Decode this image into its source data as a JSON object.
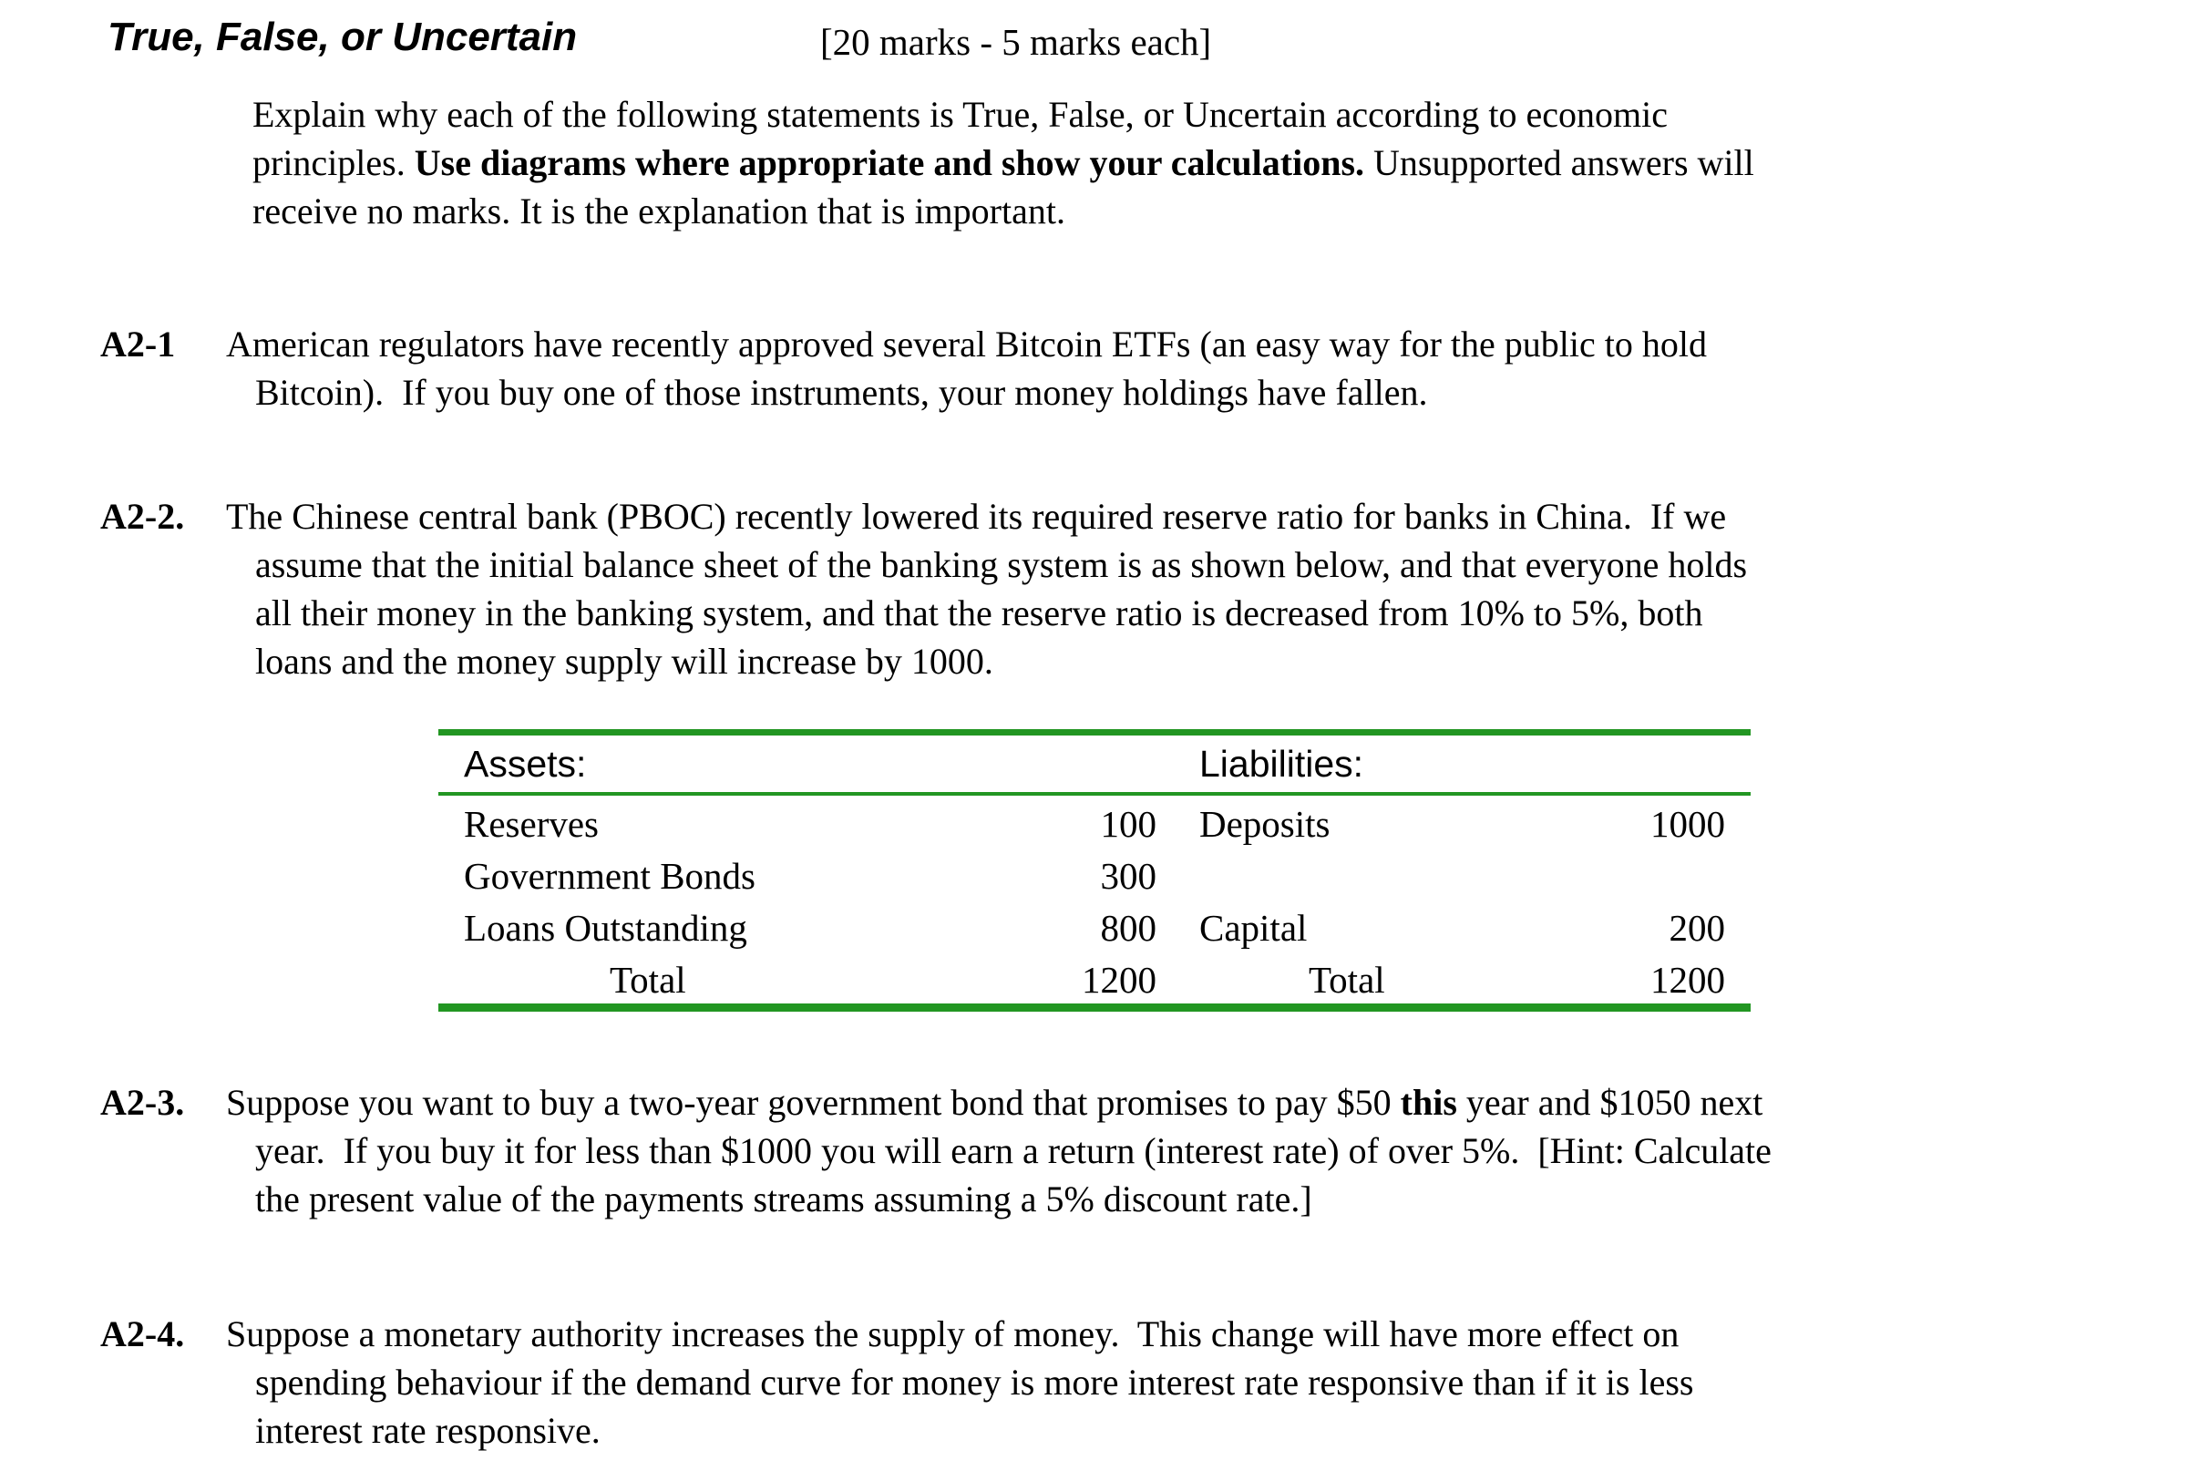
{
  "page": {
    "background": "#ffffff",
    "text_color": "#000000"
  },
  "header": {
    "title": "True, False, or Uncertain",
    "marks": "[20 marks - 5 marks each]"
  },
  "instructions": {
    "lines": [
      [
        {
          "t": "Explain why each of the following statements is True, False, or Uncertain according to economic"
        }
      ],
      [
        {
          "t": "principles. "
        },
        {
          "t": "Use diagrams where appropriate and show your calculations.",
          "b": true
        },
        {
          "t": " Unsupported answers will"
        }
      ],
      [
        {
          "t": "receive no marks. It is the explanation that is important."
        }
      ]
    ]
  },
  "questions": [
    {
      "label": "A2-1",
      "lines": [
        [
          {
            "t": "American regulators have recently approved several Bitcoin ETFs (an easy way for the public to hold"
          }
        ],
        [
          {
            "t": "Bitcoin).  If you buy one of those instruments, your money holdings have fallen."
          }
        ]
      ]
    },
    {
      "label": "A2-2.",
      "lines": [
        [
          {
            "t": "The Chinese central bank (PBOC) recently lowered its required reserve ratio for banks in China.  If we"
          }
        ],
        [
          {
            "t": "assume that the initial balance sheet of the banking system is as shown below, and that everyone holds"
          }
        ],
        [
          {
            "t": "all their money in the banking system, and that the reserve ratio is decreased from 10% to 5%, both"
          }
        ],
        [
          {
            "t": "loans and the money supply will increase by 1000."
          }
        ]
      ]
    },
    {
      "label": "A2-3.",
      "lines": [
        [
          {
            "t": "Suppose you want to buy a two-year government bond that promises to pay $50 "
          },
          {
            "t": "this",
            "b": true
          },
          {
            "t": " year and $1050 next"
          }
        ],
        [
          {
            "t": "year.  If you buy it for less than $1000 you will earn a return (interest rate) of over 5%.  [Hint: Calculate"
          }
        ],
        [
          {
            "t": "the present value of the payments streams assuming a 5% discount rate.]"
          }
        ]
      ]
    },
    {
      "label": "A2-4.",
      "lines": [
        [
          {
            "t": "Suppose a monetary authority increases the supply of money.  This change will have more effect on"
          }
        ],
        [
          {
            "t": "spending behaviour if the demand curve for money is more interest rate responsive than if it is less"
          }
        ],
        [
          {
            "t": "interest rate responsive."
          }
        ]
      ]
    }
  ],
  "balance_sheet": {
    "border_color": "#229622",
    "headers": {
      "assets": "Assets:",
      "liabilities": "Liabilities:"
    },
    "rows": [
      [
        "Reserves",
        "100",
        "Deposits",
        "1000"
      ],
      [
        "Government Bonds",
        "300",
        "",
        ""
      ],
      [
        "Loans Outstanding",
        "800",
        "Capital",
        "200"
      ],
      [
        "Total",
        "1200",
        "Total",
        "1200"
      ]
    ]
  }
}
